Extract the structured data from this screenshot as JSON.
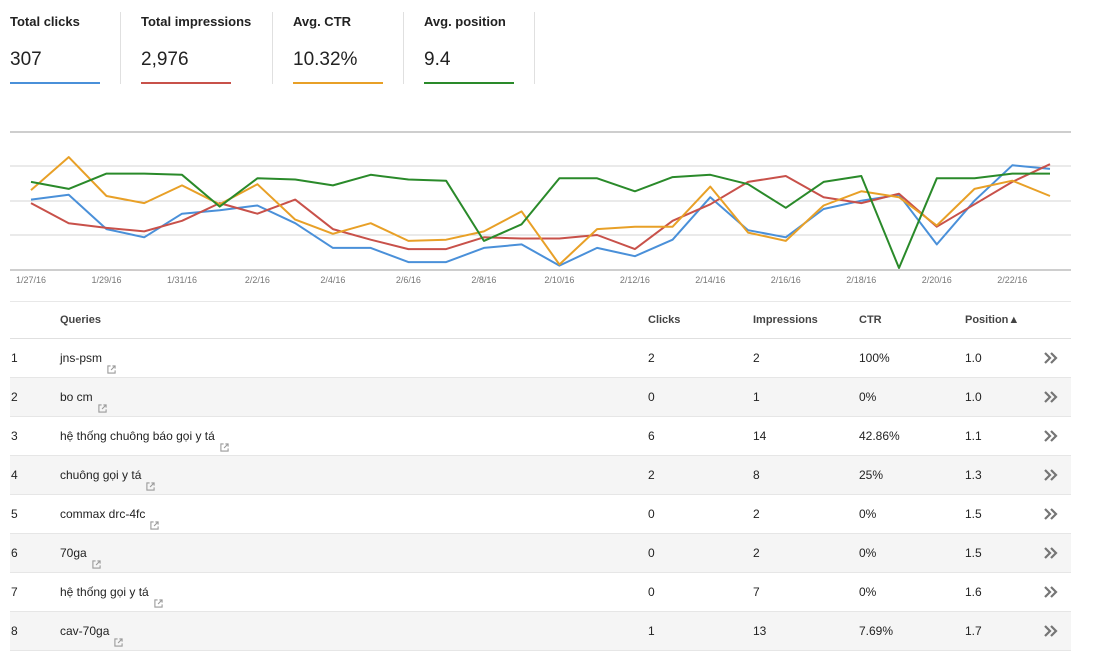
{
  "metrics": [
    {
      "label": "Total clicks",
      "value": "307",
      "color": "#4a90d9"
    },
    {
      "label": "Total impressions",
      "value": "2,976",
      "color": "#c8514a"
    },
    {
      "label": "Avg. CTR",
      "value": "10.32%",
      "color": "#e8a027"
    },
    {
      "label": "Avg. position",
      "value": "9.4",
      "color": "#2a8a2a"
    }
  ],
  "chart_data": {
    "type": "line",
    "x": [
      "1/27/16",
      "1/28/16",
      "1/29/16",
      "1/30/16",
      "1/31/16",
      "2/1/16",
      "2/2/16",
      "2/3/16",
      "2/4/16",
      "2/5/16",
      "2/6/16",
      "2/7/16",
      "2/8/16",
      "2/9/16",
      "2/10/16",
      "2/11/16",
      "2/12/16",
      "2/13/16",
      "2/14/16",
      "2/15/16",
      "2/16/16",
      "2/17/16",
      "2/18/16",
      "2/19/16",
      "2/20/16",
      "2/21/16",
      "2/22/16",
      "2/23/16"
    ],
    "x_tick_labels": [
      "1/27/16",
      "1/29/16",
      "1/31/16",
      "2/2/16",
      "2/4/16",
      "2/6/16",
      "2/8/16",
      "2/10/16",
      "2/12/16",
      "2/14/16",
      "2/16/16",
      "2/18/16",
      "2/20/16",
      "2/22/16"
    ],
    "y_scale": "each series scaled independently; no y-axis labels shown",
    "grid": true,
    "series": [
      {
        "name": "Clicks",
        "color": "#4a90d9",
        "values": [
          58,
          62,
          33,
          26,
          46,
          49,
          53,
          38,
          17,
          17,
          5,
          5,
          17,
          20,
          2,
          17,
          10,
          24,
          60,
          32,
          26,
          50,
          57,
          62,
          20,
          57,
          87,
          84
        ]
      },
      {
        "name": "Impressions",
        "color": "#c8514a",
        "values": [
          55,
          38,
          34,
          31,
          40,
          55,
          46,
          58,
          33,
          24,
          16,
          16,
          26,
          25,
          25,
          28,
          16,
          40,
          54,
          73,
          78,
          60,
          55,
          63,
          35,
          54,
          73,
          88
        ]
      },
      {
        "name": "CTR",
        "color": "#e8a027",
        "values": [
          66,
          94,
          61,
          55,
          70,
          54,
          71,
          41,
          29,
          38,
          23,
          24,
          31,
          48,
          3,
          33,
          35,
          35,
          69,
          30,
          23,
          53,
          65,
          60,
          36,
          67,
          74,
          61
        ]
      },
      {
        "name": "Position",
        "color": "#2a8a2a",
        "values": [
          73,
          67,
          80,
          80,
          79,
          52,
          76,
          75,
          70,
          79,
          75,
          74,
          23,
          37,
          76,
          76,
          65,
          77,
          79,
          71,
          51,
          73,
          78,
          0,
          76,
          76,
          80,
          80
        ]
      }
    ]
  },
  "table": {
    "headers": {
      "queries": "Queries",
      "clicks": "Clicks",
      "impressions": "Impressions",
      "ctr": "CTR",
      "position": "Position▲"
    },
    "rows": [
      {
        "n": "1",
        "q": "jns-psm",
        "clicks": "2",
        "imp": "2",
        "ctr": "100%",
        "pos": "1.0"
      },
      {
        "n": "2",
        "q": "bo cm",
        "clicks": "0",
        "imp": "1",
        "ctr": "0%",
        "pos": "1.0"
      },
      {
        "n": "3",
        "q": "hệ thống chuông báo gọi y tá",
        "clicks": "6",
        "imp": "14",
        "ctr": "42.86%",
        "pos": "1.1"
      },
      {
        "n": "4",
        "q": "chuông gọi y tá",
        "clicks": "2",
        "imp": "8",
        "ctr": "25%",
        "pos": "1.3"
      },
      {
        "n": "5",
        "q": "commax drc-4fc",
        "clicks": "0",
        "imp": "2",
        "ctr": "0%",
        "pos": "1.5"
      },
      {
        "n": "6",
        "q": "70ga",
        "clicks": "0",
        "imp": "2",
        "ctr": "0%",
        "pos": "1.5"
      },
      {
        "n": "7",
        "q": "hệ thống gọi y tá",
        "clicks": "0",
        "imp": "7",
        "ctr": "0%",
        "pos": "1.6"
      },
      {
        "n": "8",
        "q": "cav-70ga",
        "clicks": "1",
        "imp": "13",
        "ctr": "7.69%",
        "pos": "1.7"
      }
    ]
  },
  "icons": {
    "external": "external-link-icon",
    "drilldown": "double-chevron-right-icon"
  }
}
